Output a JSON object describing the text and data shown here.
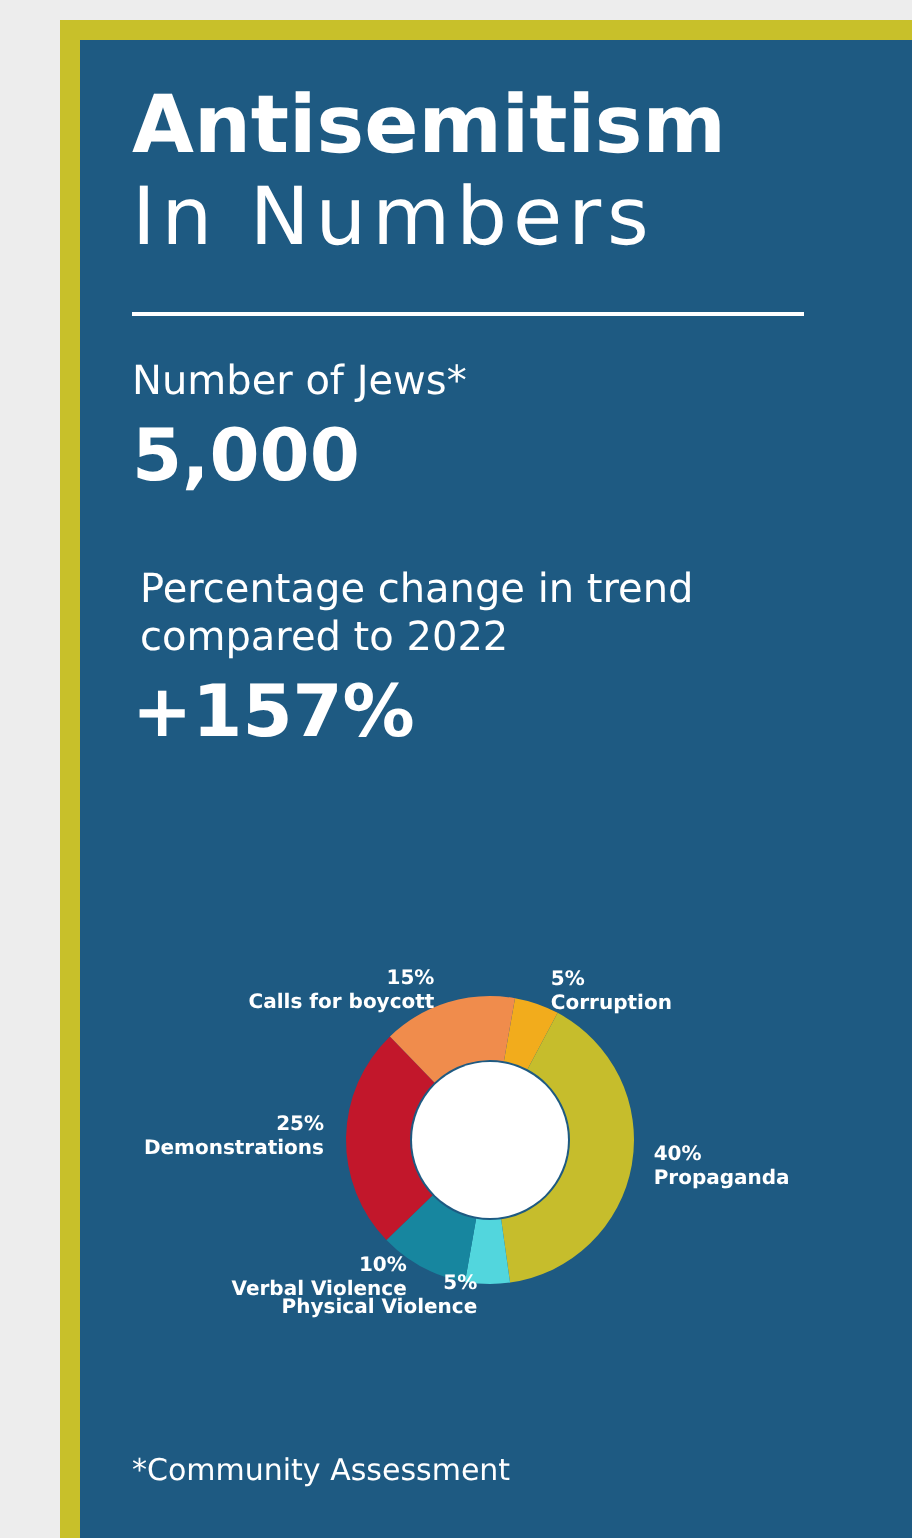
{
  "chart_data": {
    "type": "donut",
    "title": "Antisemitism\nIn Numbers",
    "annotations": [
      "Number of Jews*",
      "5,000",
      "Percentage change in trend compared to 2022",
      "+157%",
      "*Community Assessment"
    ],
    "categories": [
      "Corruption",
      "Propaganda",
      "Physical Violence",
      "Verbal Violence",
      "Demonstrations",
      "Calls for boycott"
    ],
    "values": [
      5,
      40,
      5,
      10,
      25,
      15
    ],
    "value_labels": [
      "5%",
      "40%",
      "5%",
      "10%",
      "25%",
      "15%"
    ],
    "colors": [
      "#f2ac1c",
      "#c6bd2c",
      "#52d6dd",
      "#17869f",
      "#c2172b",
      "#f08c4c"
    ]
  }
}
